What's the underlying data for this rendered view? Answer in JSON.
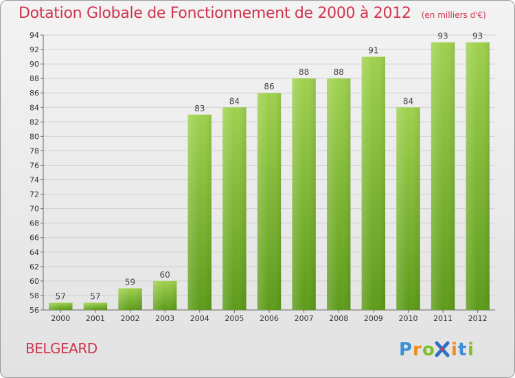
{
  "header": {
    "title": "Dotation Globale de Fonctionnement de 2000 à 2012",
    "subtitle": "(en milliers d'€)"
  },
  "footer": {
    "commune": "BELGEARD",
    "logo_text": "Proxiti"
  },
  "colors": {
    "title": "#d0344e",
    "bar_top": "#9fd14f",
    "bar_bottom": "#5d9b1a",
    "grid": "#cfcfcf",
    "axis": "#666666"
  },
  "chart_data": {
    "type": "bar",
    "title": "Dotation Globale de Fonctionnement de 2000 à 2012",
    "subtitle": "(en milliers d'€)",
    "xlabel": "",
    "ylabel": "",
    "categories": [
      "2000",
      "2001",
      "2002",
      "2003",
      "2004",
      "2005",
      "2006",
      "2007",
      "2008",
      "2009",
      "2010",
      "2011",
      "2012"
    ],
    "values": [
      57,
      57,
      59,
      60,
      83,
      84,
      86,
      88,
      88,
      91,
      84,
      93,
      93
    ],
    "ylim": [
      56,
      94
    ],
    "yticks": [
      56,
      58,
      60,
      62,
      64,
      66,
      68,
      70,
      72,
      74,
      76,
      78,
      80,
      82,
      84,
      86,
      88,
      90,
      92,
      94
    ],
    "grid": true,
    "legend": "none",
    "data_labels": true
  }
}
